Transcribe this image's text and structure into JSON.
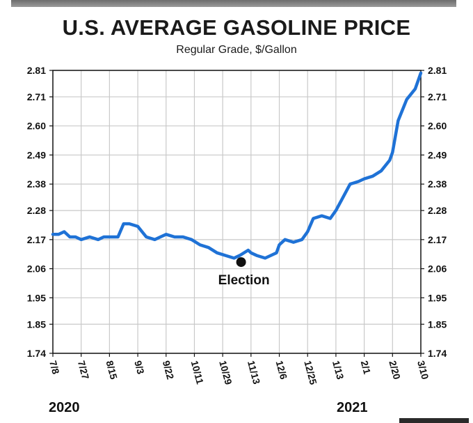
{
  "chart_data": {
    "type": "line",
    "title": "U.S. AVERAGE GASOLINE PRICE",
    "subtitle": "Regular Grade, $/Gallon",
    "ylabel": "$/Gallon",
    "ylim": [
      1.74,
      2.81
    ],
    "y_ticks": [
      2.81,
      2.71,
      2.6,
      2.49,
      2.38,
      2.28,
      2.17,
      2.06,
      1.95,
      1.85,
      1.74
    ],
    "y_tick_labels": [
      "2.81",
      "2.71",
      "2.60",
      "2.49",
      "2.38",
      "2.28",
      "2.17",
      "2.06",
      "1.95",
      "1.85",
      "1.74"
    ],
    "x_ticks": [
      "7/8",
      "7/27",
      "8/15",
      "9/3",
      "9/22",
      "10/11",
      "10/29",
      "11/13",
      "12/6",
      "12/25",
      "1/13",
      "2/1",
      "2/20",
      "3/10"
    ],
    "years": [
      "2020",
      "2021"
    ],
    "grid": true,
    "series": [
      {
        "name": "Regular gasoline price",
        "color": "#1f72d6",
        "x": [
          0,
          0.2,
          0.4,
          0.6,
          0.8,
          1.0,
          1.3,
          1.6,
          1.8,
          2.0,
          2.3,
          2.5,
          2.7,
          3.0,
          3.3,
          3.6,
          3.8,
          4.0,
          4.3,
          4.6,
          4.9,
          5.2,
          5.5,
          5.8,
          6.1,
          6.4,
          6.6,
          6.9,
          7.0,
          7.2,
          7.5,
          7.7,
          7.9,
          8.0,
          8.2,
          8.5,
          8.8,
          9.0,
          9.2,
          9.5,
          9.8,
          10.0,
          10.2,
          10.5,
          10.8,
          11.0,
          11.3,
          11.6,
          11.9,
          12.0,
          12.2,
          12.5,
          12.8,
          13.0
        ],
        "values": [
          2.19,
          2.19,
          2.2,
          2.18,
          2.18,
          2.17,
          2.18,
          2.17,
          2.18,
          2.18,
          2.18,
          2.23,
          2.23,
          2.22,
          2.18,
          2.17,
          2.18,
          2.19,
          2.18,
          2.18,
          2.17,
          2.15,
          2.14,
          2.12,
          2.11,
          2.1,
          2.11,
          2.13,
          2.12,
          2.11,
          2.1,
          2.11,
          2.12,
          2.15,
          2.17,
          2.16,
          2.17,
          2.2,
          2.25,
          2.26,
          2.25,
          2.28,
          2.32,
          2.38,
          2.39,
          2.4,
          2.41,
          2.43,
          2.47,
          2.5,
          2.62,
          2.7,
          2.74,
          2.8
        ]
      }
    ],
    "annotations": [
      {
        "label": "Election",
        "x": 6.65,
        "y": 2.085
      }
    ]
  }
}
